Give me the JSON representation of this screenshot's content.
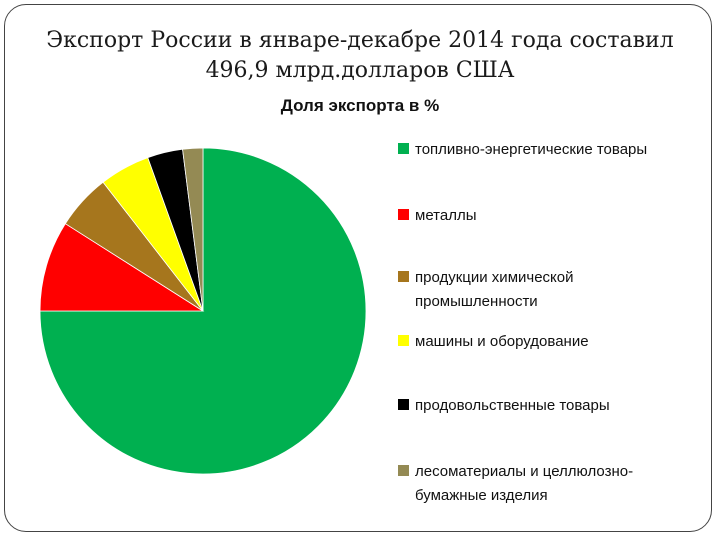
{
  "slide": {
    "title": "Экспорт России в январе-декабре 2014 года составил 496,9 млрд.долларов США"
  },
  "chart_data": {
    "type": "pie",
    "title": "Доля экспорта в %",
    "slices": [
      {
        "label": "топливно-энергетические товары",
        "value": 75.0,
        "color": "#00b050"
      },
      {
        "label": "металлы",
        "value": 9.0,
        "color": "#ff0000"
      },
      {
        "label": "продукции химической промышленности",
        "value": 5.5,
        "color": "#a6761d"
      },
      {
        "label": "машины и оборудование",
        "value": 5.0,
        "color": "#ffff00"
      },
      {
        "label": "продовольственные товары",
        "value": 3.5,
        "color": "#000000"
      },
      {
        "label": "лесоматериалы и целлюлозно-бумажные изделия",
        "value": 2.0,
        "color": "#948a54"
      }
    ],
    "legend_position": "right"
  }
}
